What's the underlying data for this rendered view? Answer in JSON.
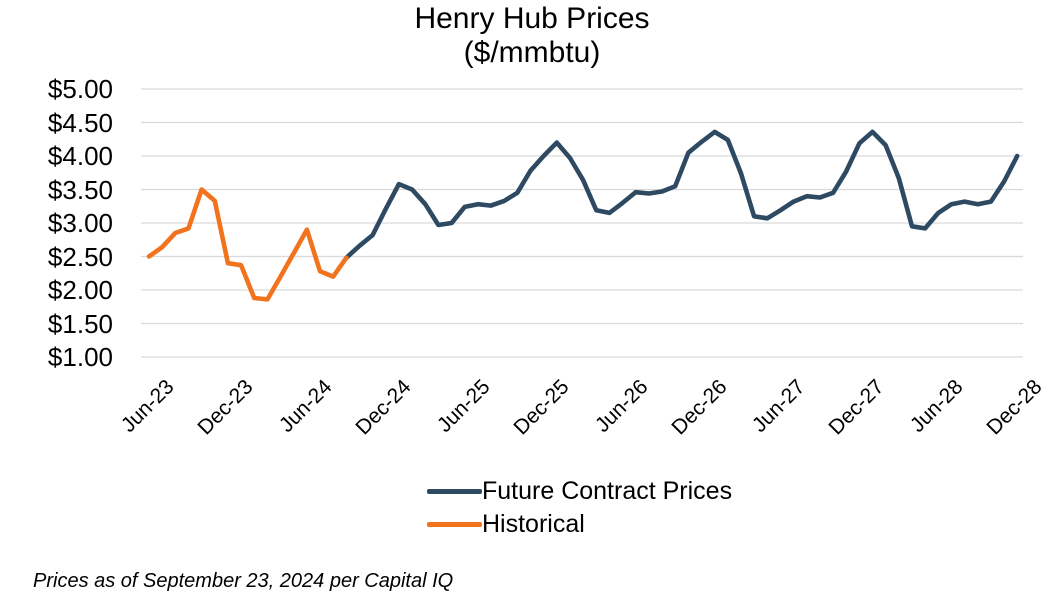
{
  "footnote": "Prices as of September 23, 2024 per Capital IQ",
  "chart_data": {
    "type": "line",
    "title": "Henry Hub Prices",
    "subtitle": "($/mmbtu)",
    "ylim": [
      1.0,
      5.0
    ],
    "grid": "horizontal",
    "legend_position": "bottom",
    "y_axis": {
      "tick_labels": [
        "$5.00",
        "$4.50",
        "$4.00",
        "$3.50",
        "$3.00",
        "$2.50",
        "$2.00",
        "$1.50",
        "$1.00"
      ],
      "tick_values": [
        5.0,
        4.5,
        4.0,
        3.5,
        3.0,
        2.5,
        2.0,
        1.5,
        1.0
      ]
    },
    "x_axis": {
      "tick_labels": [
        "Jun-23",
        "Dec-23",
        "Jun-24",
        "Dec-24",
        "Jun-25",
        "Dec-25",
        "Jun-26",
        "Dec-26",
        "Jun-27",
        "Dec-27",
        "Jun-28",
        "Dec-28"
      ],
      "tick_month_indices": [
        0,
        6,
        12,
        18,
        24,
        30,
        36,
        42,
        48,
        54,
        60,
        66
      ]
    },
    "series": [
      {
        "name": "Future Contract Prices",
        "color": "#2e4a62",
        "start_month_index": 15,
        "months": [
          "Sep-24",
          "Oct-24",
          "Nov-24",
          "Dec-24",
          "Jan-25",
          "Feb-25",
          "Mar-25",
          "Apr-25",
          "May-25",
          "Jun-25",
          "Jul-25",
          "Aug-25",
          "Sep-25",
          "Oct-25",
          "Nov-25",
          "Dec-25",
          "Jan-26",
          "Feb-26",
          "Mar-26",
          "Apr-26",
          "May-26",
          "Jun-26",
          "Jul-26",
          "Aug-26",
          "Sep-26",
          "Oct-26",
          "Nov-26",
          "Dec-26",
          "Jan-27",
          "Feb-27",
          "Mar-27",
          "Apr-27",
          "May-27",
          "Jun-27",
          "Jul-27",
          "Aug-27",
          "Sep-27",
          "Oct-27",
          "Nov-27",
          "Dec-27",
          "Jan-28",
          "Feb-28",
          "Mar-28",
          "Apr-28",
          "May-28",
          "Jun-28",
          "Jul-28",
          "Aug-28",
          "Sep-28",
          "Oct-28",
          "Nov-28",
          "Dec-28"
        ],
        "values": [
          2.48,
          2.66,
          2.82,
          3.21,
          3.58,
          3.5,
          3.28,
          2.97,
          3.0,
          3.24,
          3.28,
          3.26,
          3.33,
          3.45,
          3.78,
          4.0,
          4.2,
          3.97,
          3.64,
          3.19,
          3.15,
          3.3,
          3.46,
          3.44,
          3.47,
          3.55,
          4.05,
          4.21,
          4.36,
          4.24,
          3.74,
          3.1,
          3.07,
          3.19,
          3.32,
          3.4,
          3.38,
          3.45,
          3.77,
          4.19,
          4.36,
          4.16,
          3.67,
          2.95,
          2.92,
          3.15,
          3.28,
          3.32,
          3.28,
          3.32,
          3.62,
          4.0
        ]
      },
      {
        "name": "Historical",
        "color": "#f2731e",
        "start_month_index": 0,
        "months": [
          "Jun-23",
          "Jul-23",
          "Aug-23",
          "Sep-23",
          "Oct-23",
          "Nov-23",
          "Dec-23",
          "Jan-24",
          "Feb-24",
          "Mar-24",
          "Apr-24",
          "May-24",
          "Jun-24",
          "Jul-24",
          "Aug-24",
          "Sep-24"
        ],
        "values": [
          2.5,
          2.64,
          2.85,
          2.92,
          3.5,
          3.33,
          2.4,
          2.37,
          1.88,
          1.86,
          2.2,
          2.55,
          2.9,
          2.28,
          2.2,
          2.48
        ]
      }
    ]
  }
}
